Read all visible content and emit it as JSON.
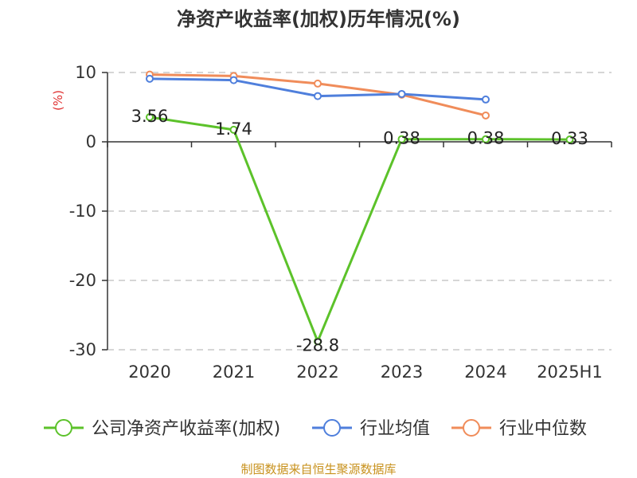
{
  "chart_data": {
    "type": "line",
    "title": "净资产收益率(加权)历年情况(%)",
    "ylabel": "(%)",
    "categories": [
      "2020",
      "2021",
      "2022",
      "2023",
      "2024",
      "2025H1"
    ],
    "y_ticks": [
      "10",
      "0",
      "-10",
      "-20",
      "-30"
    ],
    "ylim": [
      -30,
      10
    ],
    "grid": true,
    "legend_position": "bottom",
    "series": [
      {
        "name": "公司净资产收益率(加权)",
        "color": "#5cc22a",
        "values": [
          3.56,
          1.74,
          -28.8,
          0.38,
          0.38,
          0.33
        ],
        "labels": [
          "3.56",
          "1.74",
          "-28.8",
          "0.38",
          "0.38",
          "0.33"
        ]
      },
      {
        "name": "行业均值",
        "color": "#4f7fdc",
        "values": [
          9.1,
          8.9,
          6.6,
          6.9,
          6.1,
          null
        ]
      },
      {
        "name": "行业中位数",
        "color": "#f08c5a",
        "values": [
          9.7,
          9.5,
          8.4,
          6.8,
          3.8,
          null
        ]
      }
    ],
    "source": "制图数据来自恒生聚源数据库"
  }
}
